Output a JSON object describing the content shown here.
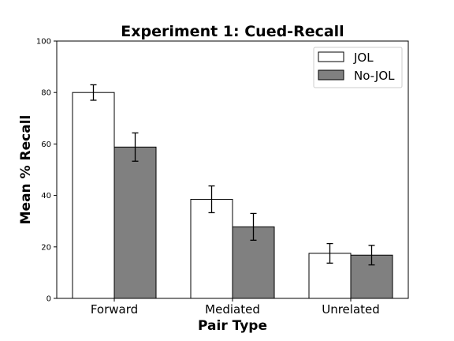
{
  "chart_data": {
    "type": "bar",
    "title": "Experiment 1: Cued-Recall",
    "xlabel": "Pair Type",
    "ylabel": "Mean % Recall",
    "categories": [
      "Forward",
      "Mediated",
      "Unrelated"
    ],
    "ylim": [
      0,
      100
    ],
    "yticks": [
      0,
      20,
      40,
      60,
      80,
      100
    ],
    "legend_position": "top-right",
    "grid": false,
    "series": [
      {
        "name": "JOL",
        "color": "#ffffff",
        "values": [
          80.0,
          38.5,
          17.5
        ],
        "error": [
          3.0,
          5.2,
          3.8
        ]
      },
      {
        "name": "No-JOL",
        "color": "#808080",
        "values": [
          58.8,
          27.8,
          16.8
        ],
        "error": [
          5.5,
          5.2,
          3.8
        ]
      }
    ]
  }
}
